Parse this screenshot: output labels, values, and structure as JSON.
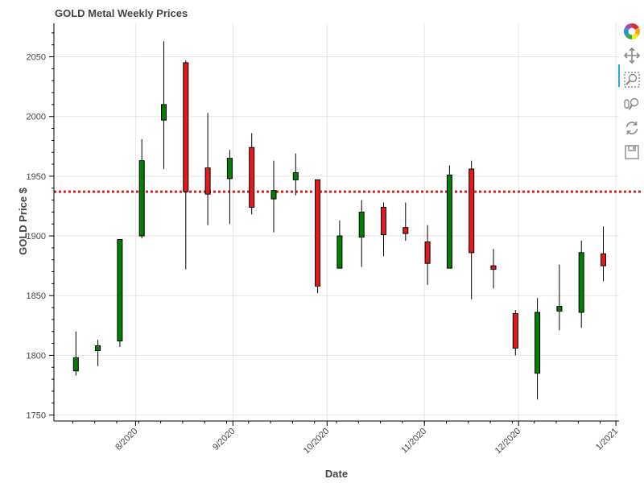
{
  "chart_data": {
    "type": "candlestick",
    "title": "GOLD Metal Weekly Prices",
    "xlabel": "Date",
    "ylabel": "GOLD Price $",
    "ylim": [
      1745,
      2078
    ],
    "xlim": [
      "2020-07-06",
      "2021-01-02"
    ],
    "x_ticks": [
      {
        "date": "2020-08-01",
        "label": "8/2020"
      },
      {
        "date": "2020-09-01",
        "label": "9/2020"
      },
      {
        "date": "2020-10-01",
        "label": "10/2020"
      },
      {
        "date": "2020-11-01",
        "label": "11/2020"
      },
      {
        "date": "2020-12-01",
        "label": "12/2020"
      },
      {
        "date": "2021-01-01",
        "label": "1/2021"
      }
    ],
    "y_ticks": [
      1750,
      1800,
      1850,
      1900,
      1950,
      2000,
      2050
    ],
    "reference_line": {
      "value": 1937,
      "color": "#e31a1c",
      "style": "dotted"
    },
    "colors": {
      "up": "#008000",
      "down": "#e31a1c",
      "wick": "#000000"
    },
    "grid": true,
    "candles": [
      {
        "date": "2020-07-13",
        "open": 1787,
        "close": 1798,
        "high": 1820,
        "low": 1783
      },
      {
        "date": "2020-07-20",
        "open": 1804,
        "close": 1808,
        "high": 1813,
        "low": 1791
      },
      {
        "date": "2020-07-27",
        "open": 1812,
        "close": 1897,
        "high": 1897,
        "low": 1807
      },
      {
        "date": "2020-08-03",
        "open": 1900,
        "close": 1963,
        "high": 1981,
        "low": 1898
      },
      {
        "date": "2020-08-10",
        "open": 1997,
        "close": 2010,
        "high": 2063,
        "low": 1956
      },
      {
        "date": "2020-08-17",
        "open": 2045,
        "close": 1937,
        "high": 2047,
        "low": 1872
      },
      {
        "date": "2020-08-24",
        "open": 1957,
        "close": 1935,
        "high": 2003,
        "low": 1909
      },
      {
        "date": "2020-08-31",
        "open": 1948,
        "close": 1965,
        "high": 1972,
        "low": 1910
      },
      {
        "date": "2020-09-07",
        "open": 1974,
        "close": 1924,
        "high": 1986,
        "low": 1918
      },
      {
        "date": "2020-09-14",
        "open": 1931,
        "close": 1938,
        "high": 1963,
        "low": 1903
      },
      {
        "date": "2020-09-21",
        "open": 1947,
        "close": 1953,
        "high": 1969,
        "low": 1934
      },
      {
        "date": "2020-09-28",
        "open": 1947,
        "close": 1858,
        "high": 1947,
        "low": 1852
      },
      {
        "date": "2020-10-05",
        "open": 1873,
        "close": 1900,
        "high": 1913,
        "low": 1873
      },
      {
        "date": "2020-10-12",
        "open": 1899,
        "close": 1920,
        "high": 1930,
        "low": 1874
      },
      {
        "date": "2020-10-19",
        "open": 1924,
        "close": 1901,
        "high": 1928,
        "low": 1883
      },
      {
        "date": "2020-10-26",
        "open": 1907,
        "close": 1902,
        "high": 1928,
        "low": 1896
      },
      {
        "date": "2020-11-02",
        "open": 1895,
        "close": 1877,
        "high": 1909,
        "low": 1859
      },
      {
        "date": "2020-11-09",
        "open": 1873,
        "close": 1951,
        "high": 1959,
        "low": 1873
      },
      {
        "date": "2020-11-16",
        "open": 1956,
        "close": 1886,
        "high": 1963,
        "low": 1847
      },
      {
        "date": "2020-11-23",
        "open": 1875,
        "close": 1872,
        "high": 1889,
        "low": 1856
      },
      {
        "date": "2020-11-30",
        "open": 1835,
        "close": 1806,
        "high": 1838,
        "low": 1800
      },
      {
        "date": "2020-12-07",
        "open": 1785,
        "close": 1836,
        "high": 1848,
        "low": 1763
      },
      {
        "date": "2020-12-14",
        "open": 1837,
        "close": 1841,
        "high": 1876,
        "low": 1821
      },
      {
        "date": "2020-12-21",
        "open": 1836,
        "close": 1886,
        "high": 1896,
        "low": 1823
      },
      {
        "date": "2020-12-28",
        "open": 1885,
        "close": 1875,
        "high": 1908,
        "low": 1862
      }
    ]
  },
  "toolbar": {
    "tools": [
      {
        "name": "bokeh-logo-icon"
      },
      {
        "name": "pan-tool-icon"
      },
      {
        "name": "box-zoom-tool-icon"
      },
      {
        "name": "wheel-zoom-tool-icon"
      },
      {
        "name": "reset-tool-icon"
      },
      {
        "name": "save-tool-icon"
      }
    ]
  }
}
